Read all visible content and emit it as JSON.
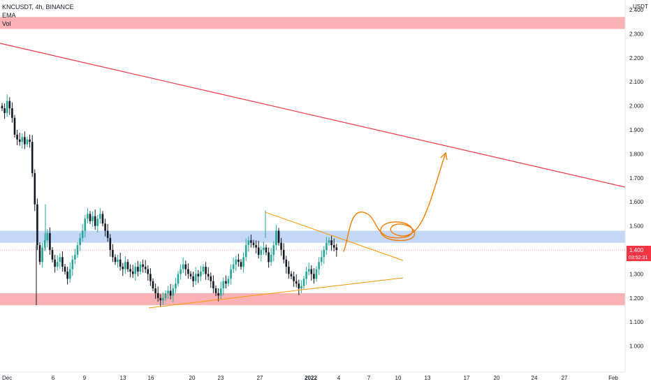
{
  "header": {
    "symbol": "KNCUSDT, 4h, BINANCE",
    "indicator_1": "EMA",
    "indicator_2": "Vol"
  },
  "price_axis": {
    "currency": "USDT",
    "ticks": [
      "2.400",
      "2.300",
      "2.200",
      "2.100",
      "2.000",
      "1.900",
      "1.800",
      "1.700",
      "1.600",
      "1.500",
      "1.400",
      "1.300",
      "1.200",
      "1.100",
      "1.000"
    ],
    "last_price": "1.400",
    "countdown": "03:52:31"
  },
  "time_axis": {
    "ticks": [
      "Dec",
      "6",
      "9",
      "13",
      "16",
      "20",
      "23",
      "27",
      "2022",
      "4",
      "7",
      "10",
      "13",
      "17",
      "20",
      "24",
      "27",
      "Feb"
    ]
  },
  "colors": {
    "up": "#26a69a",
    "down": "#131722",
    "resistance_zone": "#f7a4a6",
    "support_zone": "#b9d0f5",
    "trendline": "#f23645",
    "triangle": "#ff9800",
    "last_price_tag": "#f23645"
  },
  "chart_data": {
    "type": "candlestick",
    "symbol": "KNCUSDT",
    "interval": "4h",
    "exchange": "BINANCE",
    "ylim": [
      0.93,
      2.42
    ],
    "zones": [
      {
        "name": "resistance",
        "low": 2.32,
        "high": 2.37
      },
      {
        "name": "support-resistance",
        "low": 1.43,
        "high": 1.48
      },
      {
        "name": "support",
        "low": 1.17,
        "high": 1.22
      }
    ],
    "series": [
      {
        "name": "close",
        "values": [
          1.99,
          1.97,
          2.02,
          1.99,
          1.95,
          1.88,
          1.86,
          1.85,
          1.87,
          1.84,
          1.86,
          1.85,
          1.72,
          1.59,
          1.42,
          1.35,
          1.41,
          1.44,
          1.47,
          1.4,
          1.36,
          1.33,
          1.35,
          1.37,
          1.33,
          1.31,
          1.28,
          1.32,
          1.36,
          1.38,
          1.42,
          1.45,
          1.48,
          1.53,
          1.55,
          1.52,
          1.54,
          1.5,
          1.53,
          1.55,
          1.51,
          1.48,
          1.45,
          1.4,
          1.37,
          1.35,
          1.36,
          1.33,
          1.32,
          1.35,
          1.32,
          1.31,
          1.3,
          1.33,
          1.31,
          1.34,
          1.33,
          1.32,
          1.3,
          1.27,
          1.24,
          1.22,
          1.2,
          1.19,
          1.2,
          1.22,
          1.23,
          1.21,
          1.24,
          1.26,
          1.3,
          1.32,
          1.34,
          1.32,
          1.3,
          1.29,
          1.27,
          1.3,
          1.29,
          1.31,
          1.33,
          1.3,
          1.29,
          1.27,
          1.24,
          1.22,
          1.21,
          1.24,
          1.27,
          1.26,
          1.28,
          1.32,
          1.34,
          1.36,
          1.35,
          1.33,
          1.37,
          1.42,
          1.44,
          1.43,
          1.42,
          1.41,
          1.38,
          1.4,
          1.41,
          1.39,
          1.35,
          1.38,
          1.42,
          1.48,
          1.43,
          1.4,
          1.36,
          1.33,
          1.3,
          1.29,
          1.27,
          1.26,
          1.24,
          1.25,
          1.28,
          1.31,
          1.32,
          1.3,
          1.28,
          1.32,
          1.35,
          1.37,
          1.4,
          1.43,
          1.44,
          1.42,
          1.41,
          1.4
        ]
      }
    ],
    "trendlines": [
      {
        "name": "descending-resistance",
        "from": [
          "Nov 29",
          2.28
        ],
        "to": [
          "Feb 1",
          1.67
        ]
      },
      {
        "name": "triangle-upper",
        "from": [
          "Dec 27",
          1.56
        ],
        "to": [
          "Jan 10",
          1.38
        ]
      },
      {
        "name": "triangle-lower",
        "from": [
          "Dec 15",
          1.17
        ],
        "to": [
          "Jan 10",
          1.29
        ]
      }
    ],
    "annotations": [
      {
        "name": "projection-arrow",
        "to": [
          "Jan 15",
          1.82
        ]
      }
    ]
  }
}
